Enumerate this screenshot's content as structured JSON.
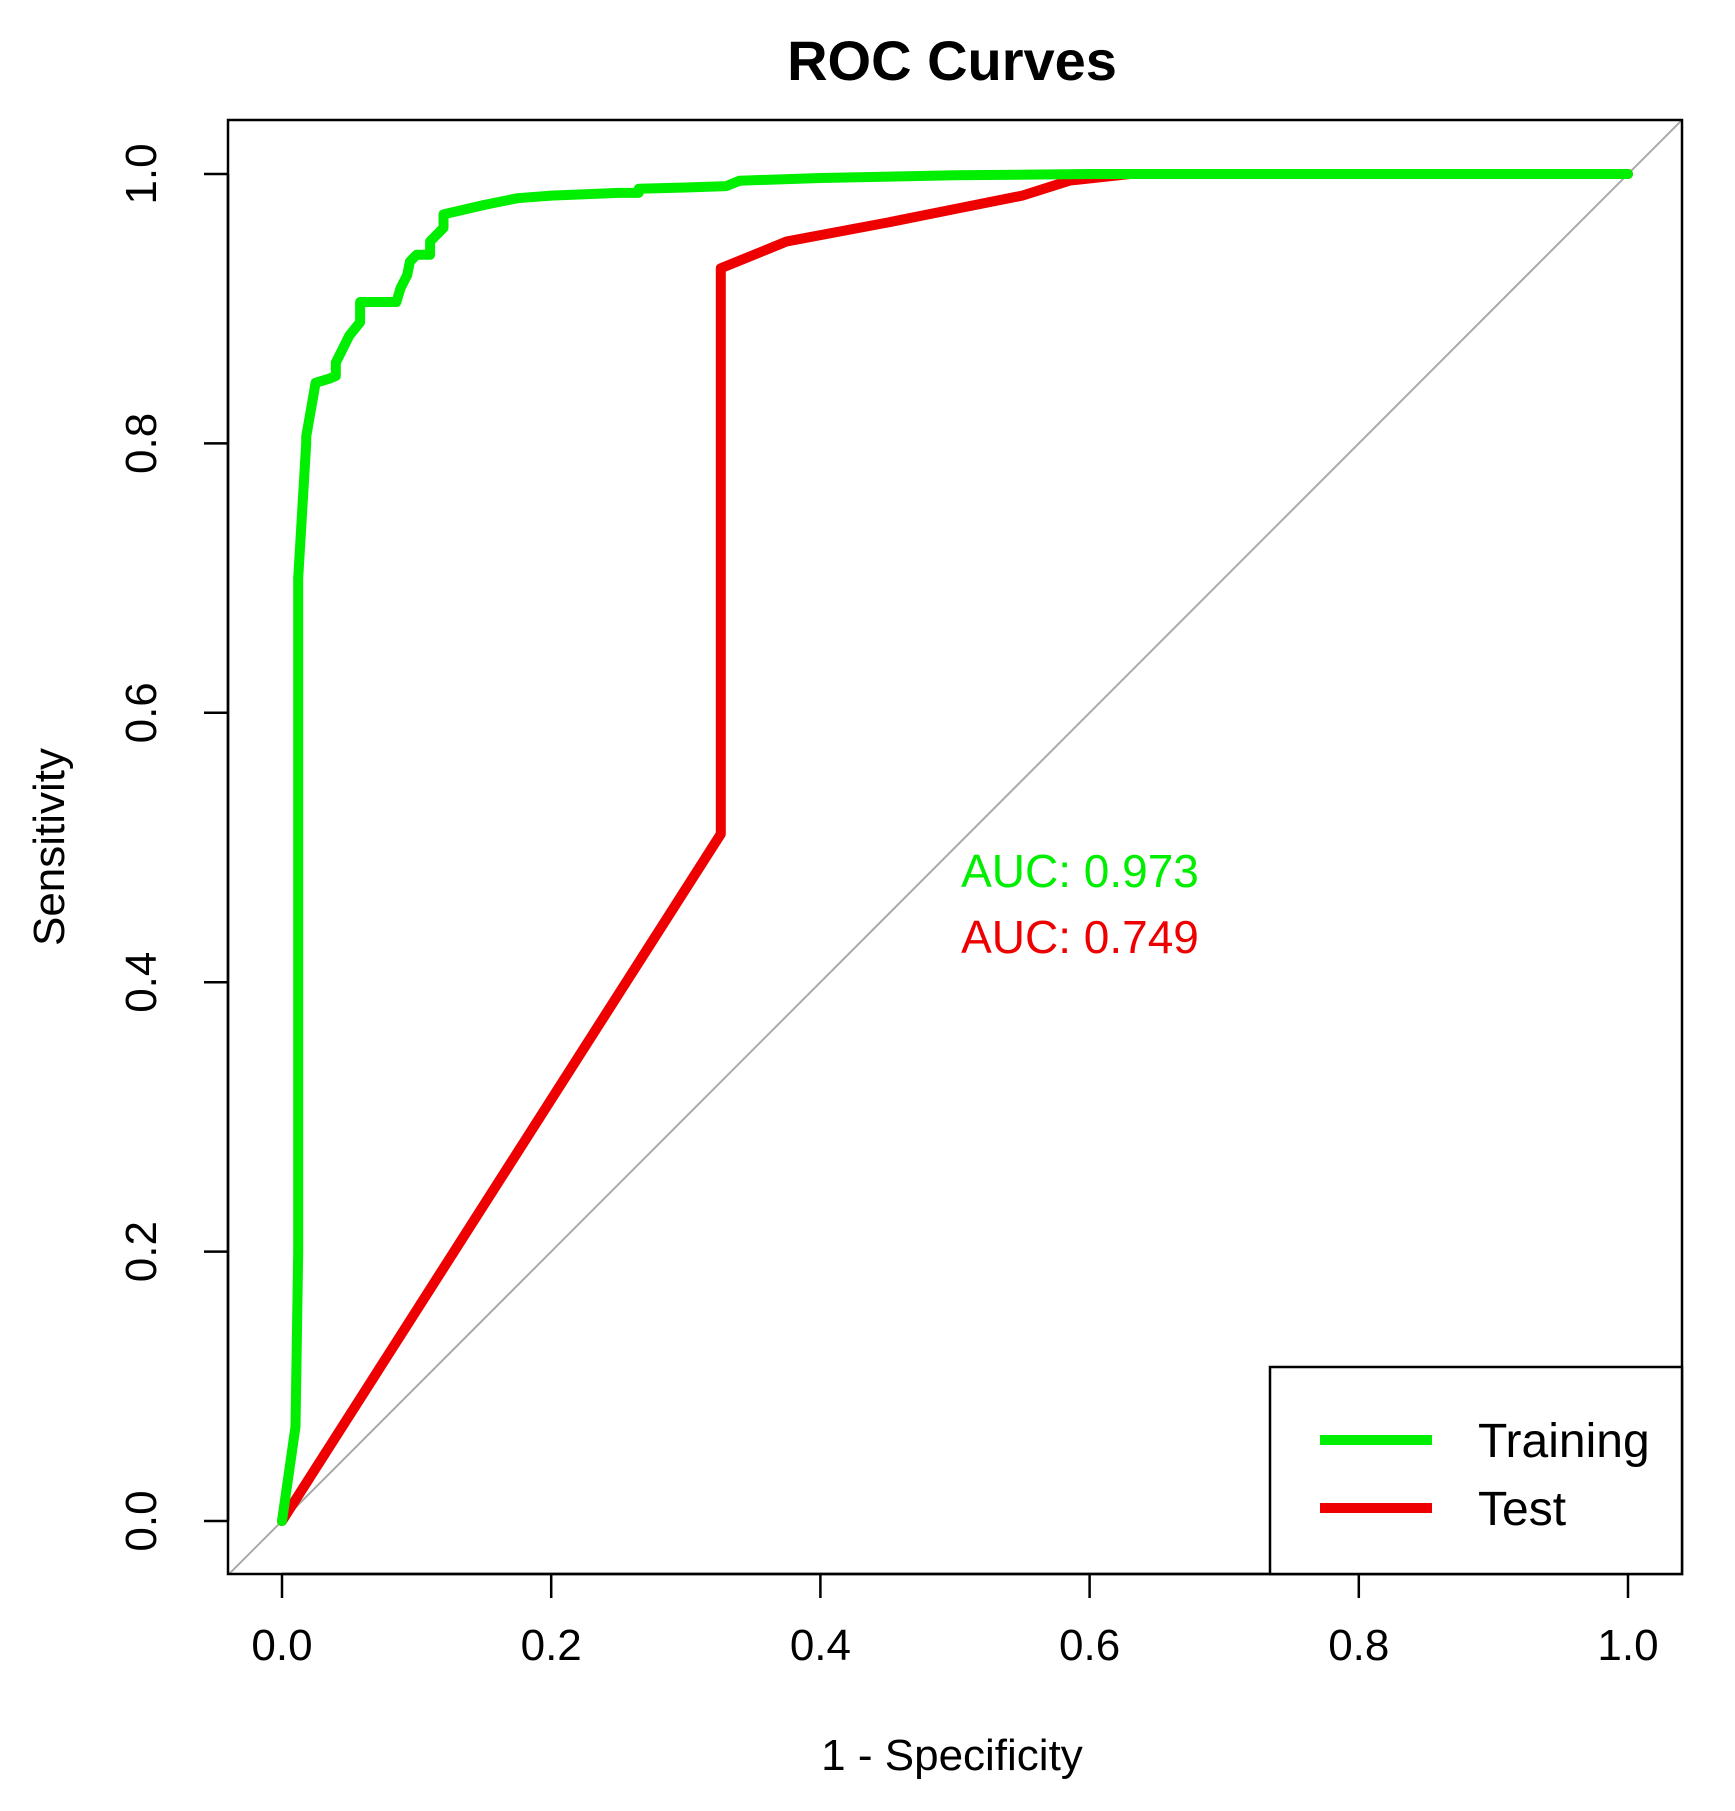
{
  "chart_data": {
    "type": "line",
    "title": "ROC Curves",
    "xlabel": "1 - Specificity",
    "ylabel": "Sensitivity",
    "xlim": [
      0,
      1
    ],
    "ylim": [
      0,
      1
    ],
    "x_ticks": [
      "0.0",
      "0.2",
      "0.4",
      "0.6",
      "0.8",
      "1.0"
    ],
    "y_ticks": [
      "0.0",
      "0.2",
      "0.4",
      "0.6",
      "0.8",
      "1.0"
    ],
    "x_tick_values": [
      0,
      0.2,
      0.4,
      0.6,
      0.8,
      1.0
    ],
    "y_tick_values": [
      0,
      0.2,
      0.4,
      0.6,
      0.8,
      1.0
    ],
    "reference_line": {
      "x": [
        0,
        1
      ],
      "y": [
        0,
        1
      ],
      "color": "#aaaaaa"
    },
    "series": [
      {
        "name": "Training",
        "color": "#00ee00",
        "auc_label": "AUC: 0.973",
        "x": [
          0,
          0.01,
          0.012,
          0.012,
          0.015,
          0.018,
          0.018,
          0.025,
          0.035,
          0.04,
          0.04,
          0.05,
          0.058,
          0.058,
          0.085,
          0.088,
          0.093,
          0.095,
          0.1,
          0.11,
          0.11,
          0.12,
          0.12,
          0.15,
          0.175,
          0.2,
          0.25,
          0.265,
          0.265,
          0.3,
          0.33,
          0.34,
          0.4,
          0.5,
          0.6,
          0.63,
          0.8,
          1.0
        ],
        "y": [
          0,
          0.07,
          0.2,
          0.7,
          0.75,
          0.8,
          0.805,
          0.845,
          0.848,
          0.85,
          0.86,
          0.88,
          0.89,
          0.905,
          0.905,
          0.915,
          0.925,
          0.935,
          0.94,
          0.94,
          0.95,
          0.96,
          0.97,
          0.977,
          0.982,
          0.984,
          0.986,
          0.986,
          0.989,
          0.99,
          0.991,
          0.995,
          0.997,
          0.999,
          1.0,
          1.0,
          1.0,
          1.0
        ]
      },
      {
        "name": "Test",
        "color": "#ee0000",
        "auc_label": "AUC: 0.749",
        "x": [
          0,
          0.326,
          0.326,
          0.375,
          0.45,
          0.5,
          0.55,
          0.585,
          0.63,
          0.8,
          1.0
        ],
        "y": [
          0,
          0.51,
          0.93,
          0.95,
          0.964,
          0.974,
          0.984,
          0.995,
          1.0,
          1.0,
          1.0
        ]
      }
    ],
    "legend": {
      "position": "bottom-right",
      "entries": [
        "Training",
        "Test"
      ]
    }
  }
}
